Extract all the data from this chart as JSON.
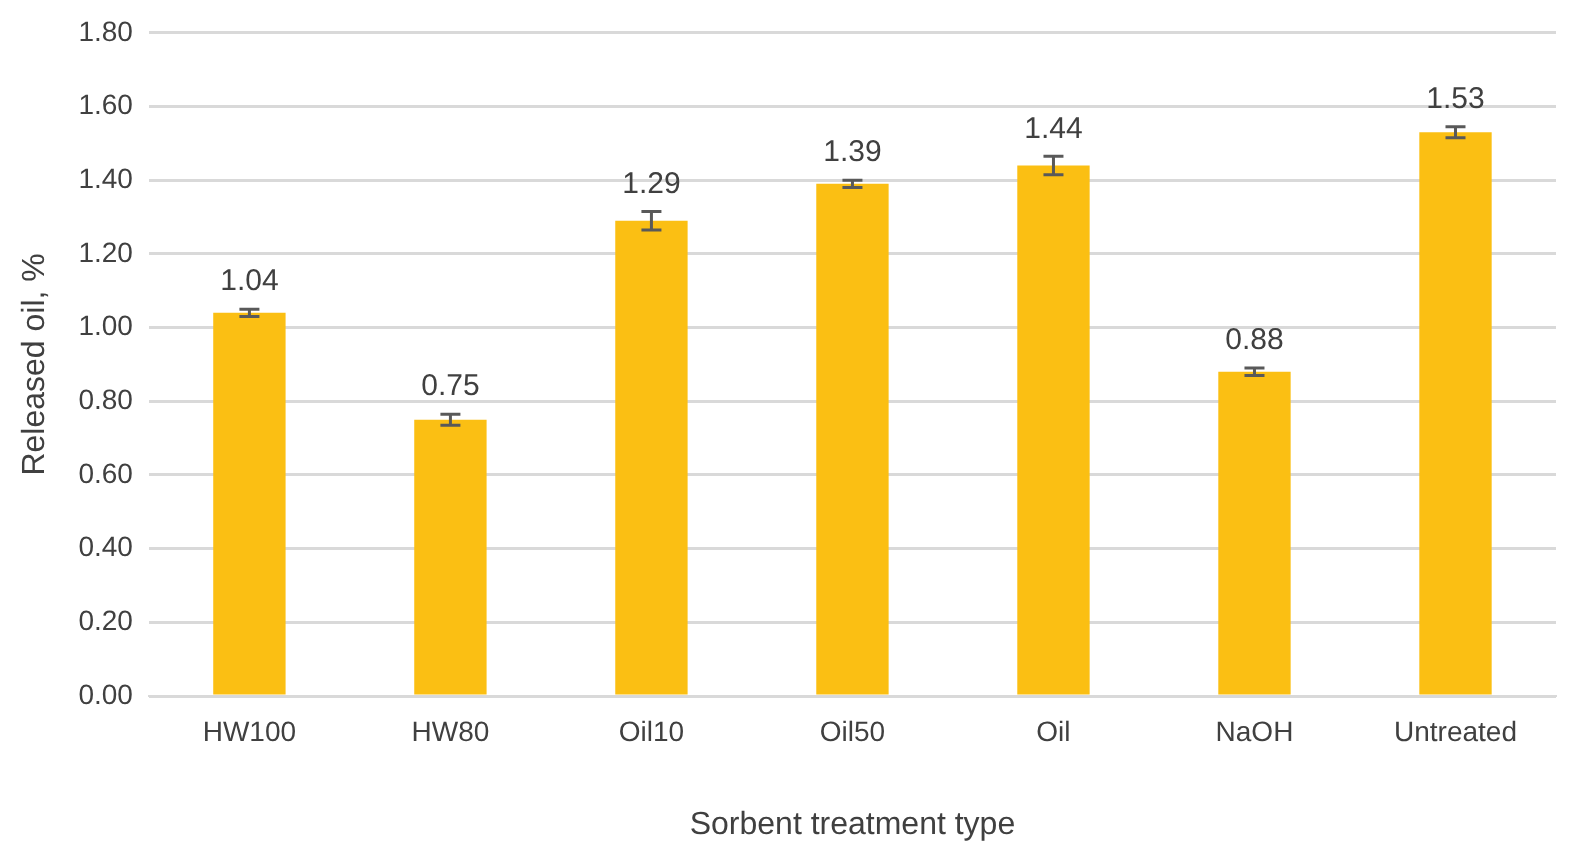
{
  "chart_data": {
    "type": "bar",
    "xlabel": "Sorbent treatment type",
    "ylabel": "Released oil, %",
    "categories": [
      "HW100",
      "HW80",
      "Oil10",
      "Oil50",
      "Oil",
      "NaOH",
      "Untreated"
    ],
    "values": [
      1.04,
      0.75,
      1.29,
      1.39,
      1.44,
      0.88,
      1.53
    ],
    "errors": [
      0.01,
      0.015,
      0.025,
      0.01,
      0.025,
      0.01,
      0.015
    ],
    "color": "#fbbf13",
    "data_labels": true,
    "ylim": [
      0,
      1.8
    ],
    "yticks": [
      {
        "value": 0,
        "label": "0.00"
      },
      {
        "value": 0.2,
        "label": "0.20"
      },
      {
        "value": 0.4,
        "label": "0.40"
      },
      {
        "value": 0.6,
        "label": "0.60"
      },
      {
        "value": 0.8,
        "label": "0.80"
      },
      {
        "value": 1,
        "label": "1.00"
      },
      {
        "value": 1.2,
        "label": "1.20"
      },
      {
        "value": 1.4,
        "label": "1.40"
      },
      {
        "value": 1.6,
        "label": "1.60"
      },
      {
        "value": 1.8,
        "label": "1.80"
      }
    ],
    "grid": "y",
    "legend": false
  }
}
